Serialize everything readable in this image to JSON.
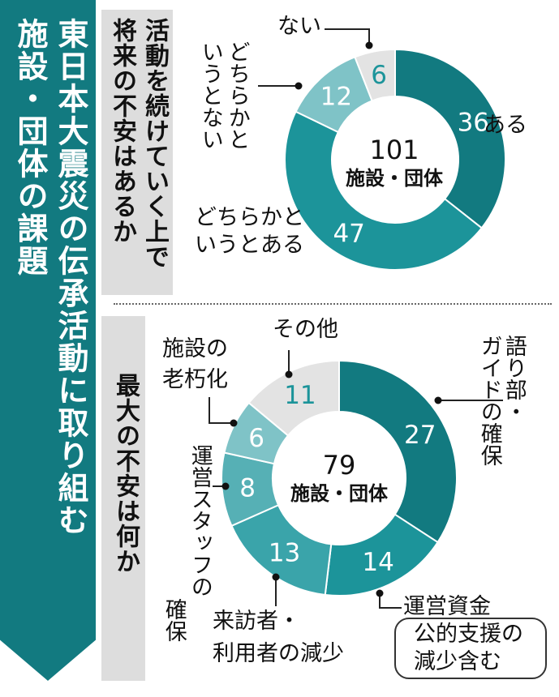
{
  "title": {
    "line1": "東日本大震災の伝承活動に取り組む",
    "line2": "施設・団体の課題"
  },
  "colors": {
    "title_bg": "#127a80",
    "question_bg": "#dddddd",
    "palette": [
      "#127a80",
      "#1c949a",
      "#3aa4aa",
      "#56b0b5",
      "#7fc3c7",
      "#a8d6d9",
      "#e3e3e3"
    ]
  },
  "chart_data": [
    {
      "type": "pie",
      "title": "活動を続けていく上で将来の不安はあるか",
      "title_lines": [
        "活動を続けていく上で",
        "将来の不安はあるか"
      ],
      "center_total": "101",
      "center_unit": "施設・団体",
      "categories": [
        "ある",
        "どちらかというとある",
        "どちらかというとない",
        "ない"
      ],
      "values": [
        36,
        47,
        12,
        6
      ],
      "colors": [
        "#127a80",
        "#1c949a",
        "#7fc3c7",
        "#e3e3e3"
      ],
      "label_lines": [
        [
          "ある"
        ],
        [
          "どちらかと",
          "いうとある"
        ],
        [
          "どちらかと",
          "いうとない"
        ],
        [
          "ない"
        ]
      ],
      "legend": "none"
    },
    {
      "type": "pie",
      "title": "最大の不安は何か",
      "center_total": "79",
      "center_unit": "施設・団体",
      "categories": [
        "語り部・ガイドの確保",
        "運営資金（公的支援の減少含む）",
        "来訪者・利用者の減少",
        "運営スタッフの確保",
        "施設の老朽化",
        "その他"
      ],
      "values": [
        27,
        14,
        13,
        8,
        6,
        11
      ],
      "colors": [
        "#127a80",
        "#1c949a",
        "#3aa4aa",
        "#56b0b5",
        "#7fc3c7",
        "#e3e3e3"
      ],
      "label_lines": [
        [
          "語り",
          "ガイド"
        ],
        [
          "運営資金",
          "公的支援の",
          "減少含む"
        ],
        [
          "来訪者・",
          "利用者の減少"
        ],
        [
          "運営スタッフの",
          "確保"
        ],
        [
          "施設の",
          "老朽化"
        ],
        [
          "その他"
        ]
      ],
      "label_extras": {
        "guide_part": "部・",
        "guide_tail": "の確保"
      },
      "legend": "none"
    }
  ]
}
